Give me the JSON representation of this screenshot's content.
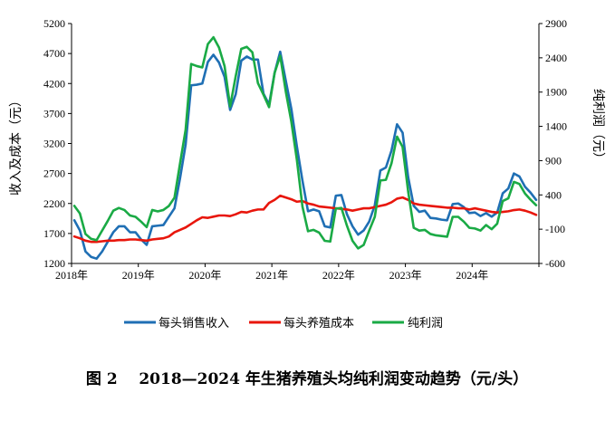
{
  "chart_data": {
    "type": "line",
    "title": "",
    "ylabel_left": "收入及成本（元）",
    "ylabel_right": "纯利润（元）",
    "ylim_left": [
      1200,
      5200
    ],
    "ylim_right": [
      -600,
      2900
    ],
    "yticks_left": [
      "1200",
      "1700",
      "2200",
      "2700",
      "3200",
      "3700",
      "4200",
      "4700",
      "5200"
    ],
    "yticks_right": [
      "-600",
      "-100",
      "400",
      "900",
      "1400",
      "1900",
      "2400",
      "2900"
    ],
    "x_ticks": [
      "2018年",
      "2019年",
      "2020年",
      "2021年",
      "2022年",
      "2023年",
      "2024年"
    ],
    "x_period": "monthly, Jan 2018 – Dec 2024",
    "grid": false,
    "legend_position": "bottom",
    "series": [
      {
        "name": "每头销售收入",
        "color": "#1f6fb4",
        "axis": "left",
        "values": [
          1920,
          1750,
          1400,
          1310,
          1280,
          1400,
          1560,
          1720,
          1820,
          1820,
          1720,
          1720,
          1600,
          1510,
          1820,
          1830,
          1840,
          1980,
          2120,
          2620,
          3180,
          4170,
          4180,
          4200,
          4560,
          4680,
          4550,
          4310,
          3760,
          4020,
          4580,
          4650,
          4600,
          4600,
          4030,
          3850,
          4380,
          4730,
          4250,
          3780,
          3150,
          2580,
          2070,
          2100,
          2070,
          1820,
          1800,
          2330,
          2340,
          2020,
          1820,
          1680,
          1750,
          1900,
          2170,
          2750,
          2800,
          3080,
          3520,
          3380,
          2640,
          2160,
          2060,
          2080,
          1960,
          1950,
          1930,
          1920,
          2190,
          2200,
          2140,
          2040,
          2050,
          1990,
          2040,
          1980,
          2050,
          2370,
          2450,
          2700,
          2650,
          2480,
          2380,
          2260
        ]
      },
      {
        "name": "每头养殖成本",
        "color": "#e8160c",
        "axis": "left",
        "values": [
          1650,
          1620,
          1580,
          1560,
          1560,
          1570,
          1580,
          1580,
          1590,
          1590,
          1600,
          1600,
          1590,
          1580,
          1600,
          1610,
          1620,
          1650,
          1720,
          1760,
          1800,
          1860,
          1920,
          1970,
          1960,
          1980,
          2000,
          2000,
          1990,
          2020,
          2060,
          2050,
          2080,
          2100,
          2100,
          2210,
          2260,
          2330,
          2300,
          2270,
          2230,
          2240,
          2200,
          2180,
          2150,
          2140,
          2130,
          2120,
          2110,
          2100,
          2080,
          2100,
          2120,
          2120,
          2140,
          2160,
          2180,
          2220,
          2280,
          2300,
          2260,
          2200,
          2180,
          2170,
          2160,
          2150,
          2140,
          2130,
          2130,
          2120,
          2120,
          2100,
          2120,
          2100,
          2080,
          2060,
          2050,
          2060,
          2070,
          2090,
          2100,
          2080,
          2050,
          2010
        ]
      },
      {
        "name": "纯利润",
        "color": "#1aaa45",
        "axis": "right",
        "values": [
          240,
          130,
          -170,
          -240,
          -260,
          -120,
          20,
          170,
          210,
          180,
          100,
          80,
          10,
          -70,
          180,
          160,
          180,
          240,
          360,
          860,
          1350,
          2310,
          2280,
          2260,
          2600,
          2700,
          2550,
          2280,
          1690,
          2130,
          2530,
          2560,
          2480,
          2030,
          1860,
          1680,
          2180,
          2430,
          1910,
          1470,
          910,
          230,
          -130,
          -110,
          -150,
          -270,
          -280,
          200,
          210,
          -50,
          -270,
          -380,
          -330,
          -120,
          80,
          610,
          620,
          860,
          1250,
          1100,
          450,
          -80,
          -120,
          -110,
          -170,
          -190,
          -200,
          -210,
          80,
          80,
          10,
          -80,
          -90,
          -120,
          -40,
          -100,
          -20,
          310,
          350,
          590,
          560,
          420,
          330,
          250
        ]
      }
    ]
  },
  "caption": "图 2    2018—2024 年生猪养殖头均纯利润变动趋势（元/头）"
}
